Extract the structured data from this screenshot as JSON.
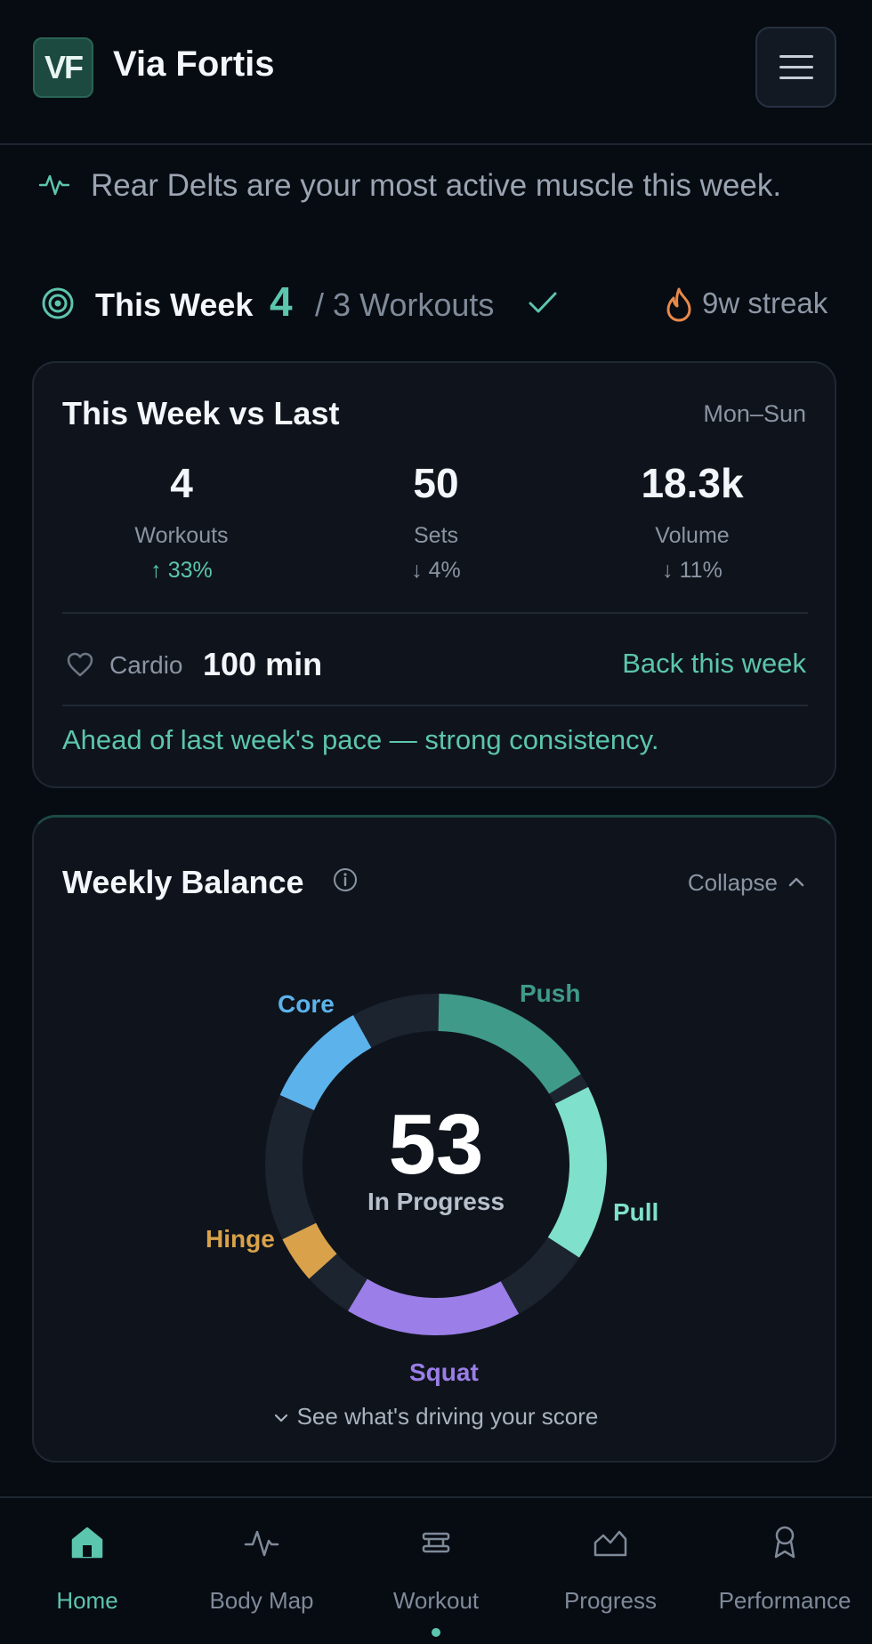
{
  "app": {
    "logo_text": "VF",
    "title": "Via Fortis"
  },
  "insight": {
    "text": "Rear Delts are your most active muscle this week."
  },
  "week": {
    "label": "This Week",
    "count": "4",
    "goal_text": "/ 3 Workouts",
    "streak": "9w streak"
  },
  "comparison": {
    "title": "This Week vs Last",
    "range": "Mon–Sun",
    "stats": [
      {
        "value": "4",
        "label": "Workouts",
        "change": "↑ 33%",
        "direction": "up"
      },
      {
        "value": "50",
        "label": "Sets",
        "change": "↓ 4%",
        "direction": "down"
      },
      {
        "value": "18.3k",
        "label": "Volume",
        "change": "↓ 11%",
        "direction": "down"
      }
    ],
    "cardio_label": "Cardio",
    "cardio_value": "100 min",
    "cardio_link": "Back this week",
    "note": "Ahead of last week's pace — strong consistency."
  },
  "balance": {
    "title": "Weekly Balance",
    "collapse_label": "Collapse",
    "score": "53",
    "score_label": "In Progress",
    "drive_link": "See what's driving your score",
    "segments": [
      {
        "name": "Push",
        "color": "#3f9a89"
      },
      {
        "name": "Pull",
        "color": "#7fe0cb"
      },
      {
        "name": "Squat",
        "color": "#9b7ee8"
      },
      {
        "name": "Hinge",
        "color": "#d9a24a"
      },
      {
        "name": "Core",
        "color": "#5cb3ec"
      }
    ]
  },
  "colors": {
    "accent": "#5cc5ad",
    "background": "#070b12",
    "card": "#0f141c"
  },
  "tabs": [
    {
      "label": "Home",
      "icon": "home-icon",
      "active": true
    },
    {
      "label": "Body Map",
      "icon": "pulse-icon",
      "active": false
    },
    {
      "label": "Workout",
      "icon": "dumbbell-icon",
      "active": false
    },
    {
      "label": "Progress",
      "icon": "chart-icon",
      "active": false
    },
    {
      "label": "Performance",
      "icon": "award-icon",
      "active": false
    }
  ]
}
